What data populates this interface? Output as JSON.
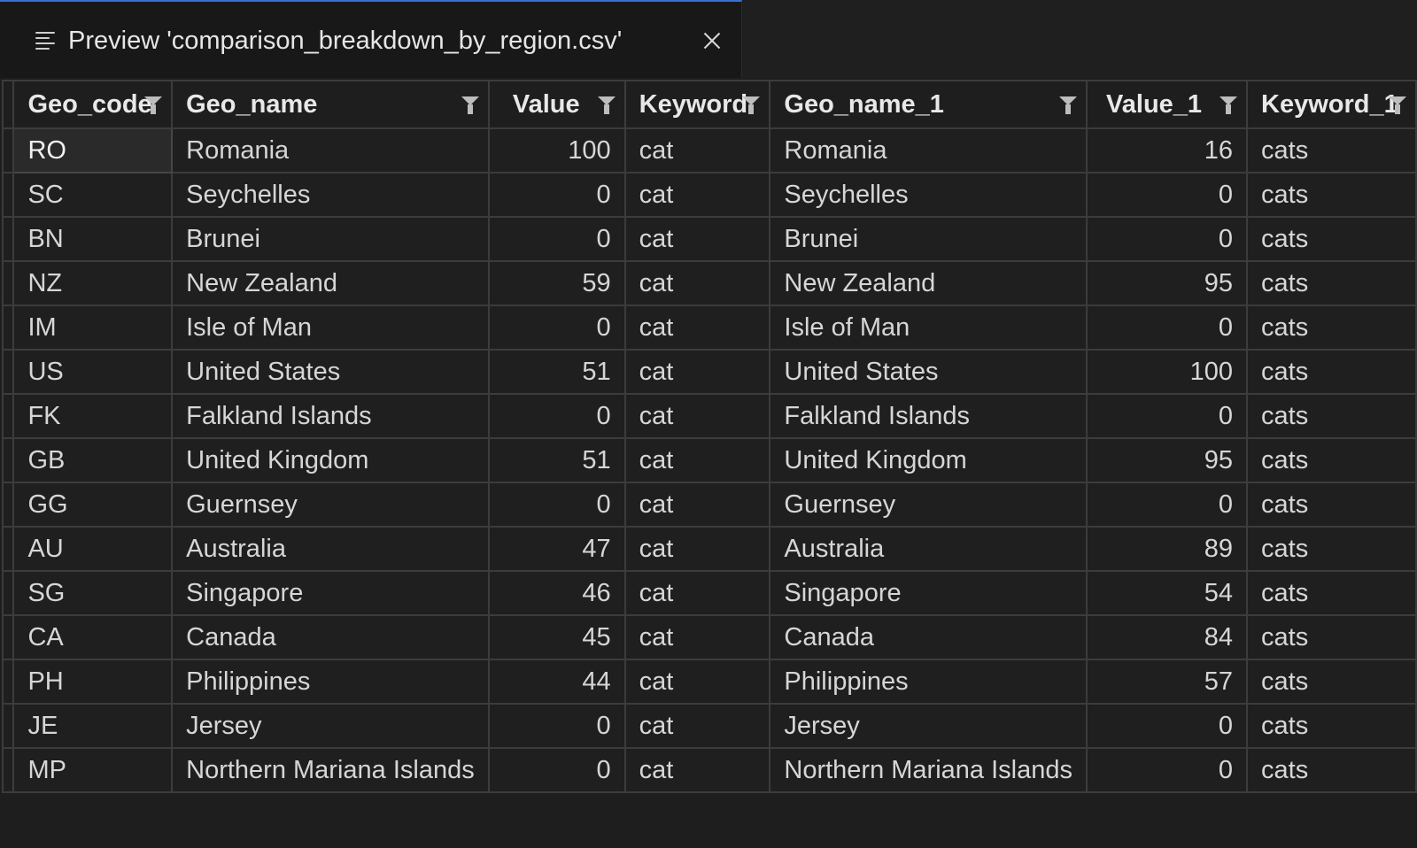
{
  "tab": {
    "title": "Preview 'comparison_breakdown_by_region.csv'",
    "icon": "preview-lines-icon",
    "close_icon": "close-icon"
  },
  "table": {
    "columns": [
      "Geo_code",
      "Geo_name",
      "Value",
      "Keyword",
      "Geo_name_1",
      "Value_1",
      "Keyword_1"
    ],
    "rows": [
      [
        "RO",
        "Romania",
        "100",
        "cat",
        "Romania",
        "16",
        "cats"
      ],
      [
        "SC",
        "Seychelles",
        "0",
        "cat",
        "Seychelles",
        "0",
        "cats"
      ],
      [
        "BN",
        "Brunei",
        "0",
        "cat",
        "Brunei",
        "0",
        "cats"
      ],
      [
        "NZ",
        "New Zealand",
        "59",
        "cat",
        "New Zealand",
        "95",
        "cats"
      ],
      [
        "IM",
        "Isle of Man",
        "0",
        "cat",
        "Isle of Man",
        "0",
        "cats"
      ],
      [
        "US",
        "United States",
        "51",
        "cat",
        "United States",
        "100",
        "cats"
      ],
      [
        "FK",
        "Falkland Islands",
        "0",
        "cat",
        "Falkland Islands",
        "0",
        "cats"
      ],
      [
        "GB",
        "United Kingdom",
        "51",
        "cat",
        "United Kingdom",
        "95",
        "cats"
      ],
      [
        "GG",
        "Guernsey",
        "0",
        "cat",
        "Guernsey",
        "0",
        "cats"
      ],
      [
        "AU",
        "Australia",
        "47",
        "cat",
        "Australia",
        "89",
        "cats"
      ],
      [
        "SG",
        "Singapore",
        "46",
        "cat",
        "Singapore",
        "54",
        "cats"
      ],
      [
        "CA",
        "Canada",
        "45",
        "cat",
        "Canada",
        "84",
        "cats"
      ],
      [
        "PH",
        "Philippines",
        "44",
        "cat",
        "Philippines",
        "57",
        "cats"
      ],
      [
        "JE",
        "Jersey",
        "0",
        "cat",
        "Jersey",
        "0",
        "cats"
      ],
      [
        "MP",
        "Northern Mariana Islands",
        "0",
        "cat",
        "Northern Mariana Islands",
        "0",
        "cats"
      ]
    ]
  }
}
